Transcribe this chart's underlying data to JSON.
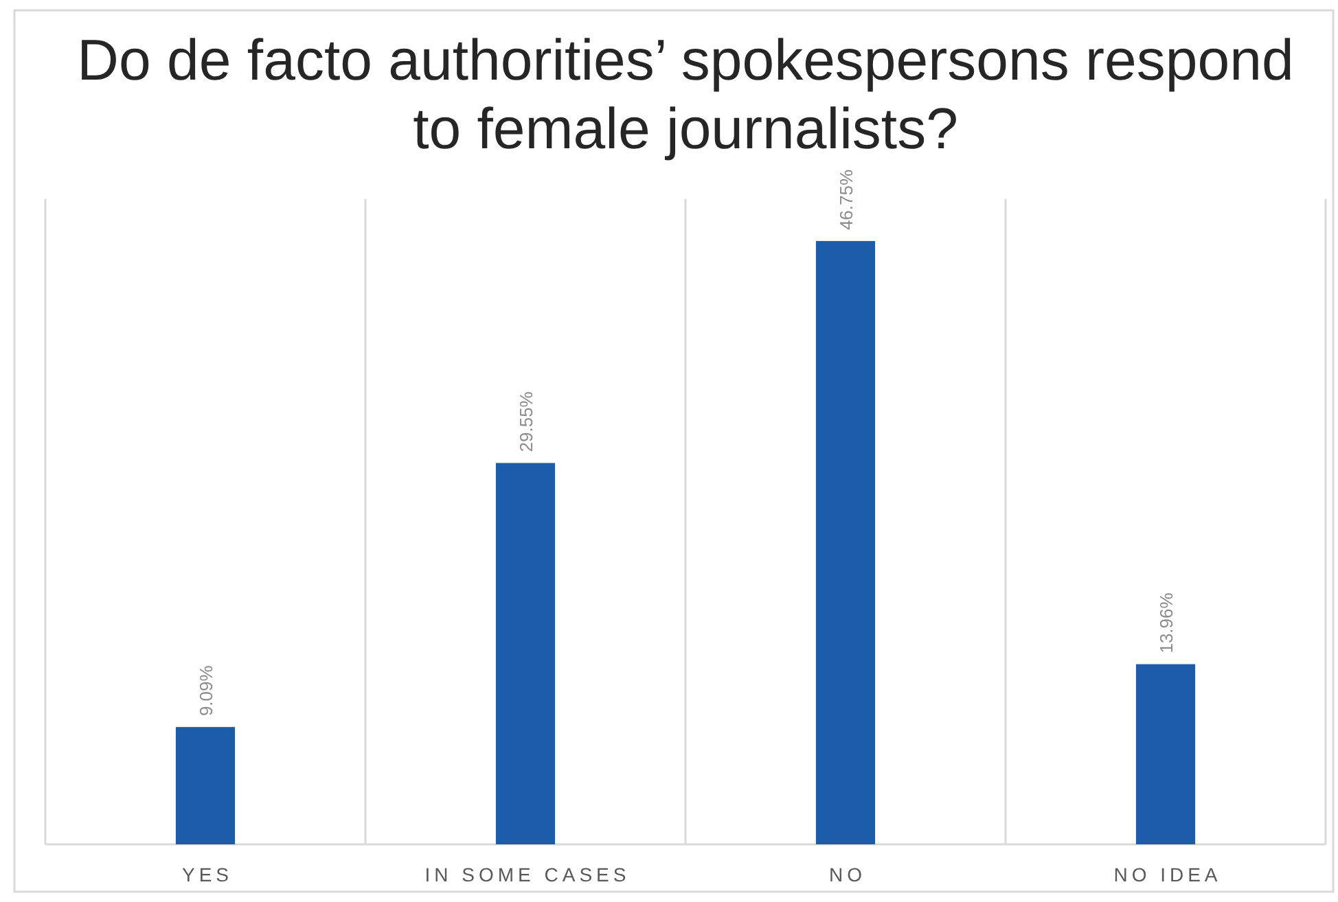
{
  "chart_data": {
    "type": "bar",
    "title": "Do de facto authorities’ spokespersons respond to female journalists?",
    "categories": [
      "YES",
      "IN SOME CASES",
      "NO",
      "NO IDEA"
    ],
    "values": [
      9.09,
      29.55,
      46.75,
      13.96
    ],
    "value_labels": [
      "9.09%",
      "29.55%",
      "46.75%",
      "13.96%"
    ],
    "color": "#1c5caa",
    "ylim": [
      0,
      50
    ],
    "grid": "x"
  }
}
